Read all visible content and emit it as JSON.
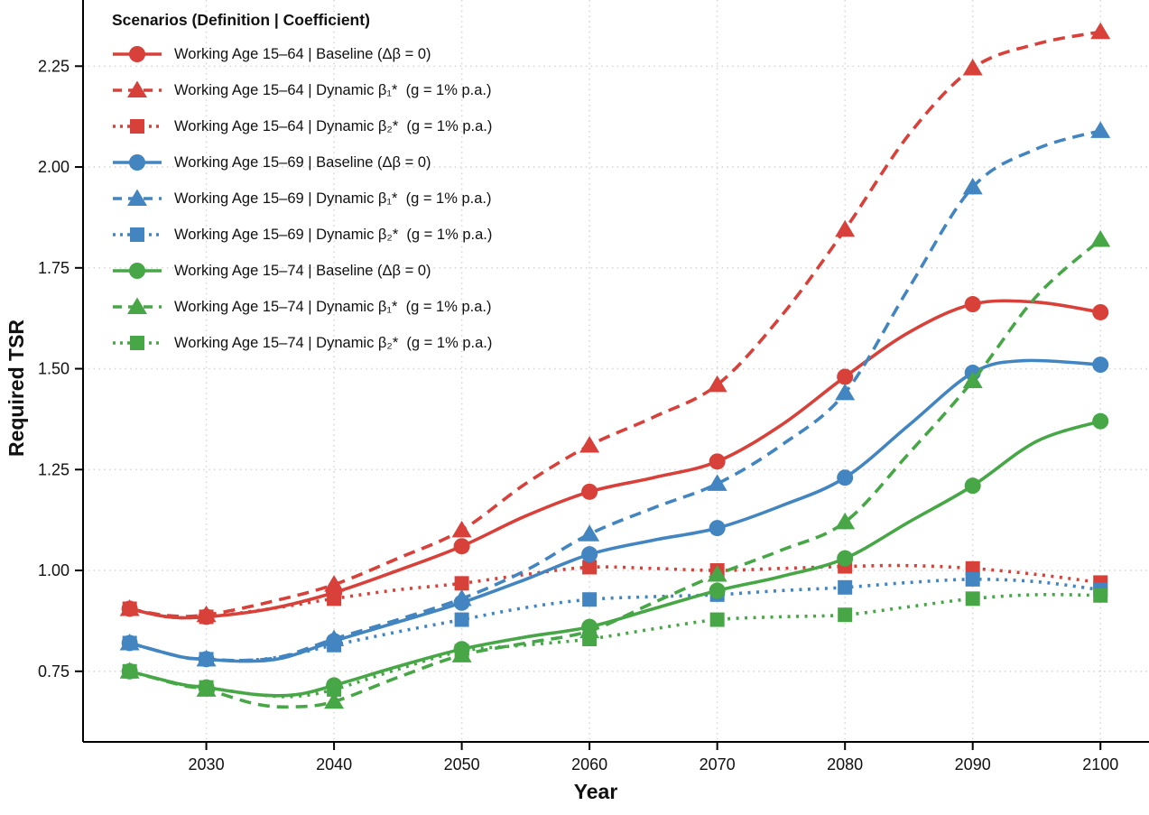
{
  "chart_data": {
    "type": "line",
    "xlabel": "Year",
    "ylabel": "Required TSR",
    "x_ticks": [
      2030,
      2040,
      2050,
      2060,
      2070,
      2080,
      2090,
      2100
    ],
    "y_ticks": [
      0.75,
      1.0,
      1.25,
      1.5,
      1.75,
      2.0,
      2.25
    ],
    "y_tick_labels": [
      "0.75",
      "1.00",
      "1.25",
      "1.50",
      "1.75",
      "2.00",
      "2.25"
    ],
    "xlim": [
      2020.35,
      2103.8
    ],
    "ylim": [
      0.575,
      2.414
    ],
    "grid": "dotted-both-axes",
    "grid_color": "#d9d9d9",
    "axis_color": "#000000",
    "marker_years": [
      2024,
      2030,
      2040,
      2050,
      2060,
      2070,
      2080,
      2090,
      2100
    ],
    "legend": {
      "title": "Scenarios (Definition | Coefficient)",
      "position": "top-left"
    },
    "series": [
      {
        "label": "Working Age 15–64 | Baseline (Δβ = 0)",
        "color": "#d8403a",
        "line_style": "solid",
        "marker": "circle",
        "x": [
          2024,
          2027,
          2030,
          2035,
          2040,
          2045,
          2050,
          2055,
          2060,
          2065,
          2070,
          2075,
          2080,
          2085,
          2090,
          2095,
          2100
        ],
        "y": [
          0.905,
          0.885,
          0.885,
          0.905,
          0.945,
          1.0,
          1.06,
          1.135,
          1.195,
          1.23,
          1.27,
          1.36,
          1.48,
          1.59,
          1.66,
          1.665,
          1.64
        ]
      },
      {
        "label": "Working Age 15–64 | Dynamic β₁*  (g = 1% p.a.)",
        "color": "#d8403a",
        "line_style": "dashed",
        "marker": "triangle",
        "x": [
          2024,
          2027,
          2030,
          2035,
          2040,
          2045,
          2050,
          2055,
          2060,
          2065,
          2070,
          2075,
          2080,
          2085,
          2090,
          2095,
          2100
        ],
        "y": [
          0.905,
          0.888,
          0.89,
          0.922,
          0.965,
          1.03,
          1.1,
          1.215,
          1.31,
          1.38,
          1.46,
          1.63,
          1.845,
          2.08,
          2.245,
          2.305,
          2.335
        ]
      },
      {
        "label": "Working Age 15–64 | Dynamic β₂*  (g = 1% p.a.)",
        "color": "#d8403a",
        "line_style": "dotted",
        "marker": "square",
        "x": [
          2024,
          2027,
          2030,
          2035,
          2040,
          2045,
          2050,
          2055,
          2060,
          2065,
          2070,
          2075,
          2080,
          2085,
          2090,
          2095,
          2100
        ],
        "y": [
          0.905,
          0.885,
          0.885,
          0.905,
          0.93,
          0.952,
          0.968,
          0.99,
          1.008,
          1.005,
          1.0,
          1.005,
          1.01,
          1.012,
          1.005,
          0.99,
          0.97
        ]
      },
      {
        "label": "Working Age 15–69 | Baseline (Δβ = 0)",
        "color": "#4285c0",
        "line_style": "solid",
        "marker": "circle",
        "x": [
          2024,
          2028,
          2030,
          2033,
          2036,
          2040,
          2045,
          2050,
          2055,
          2060,
          2065,
          2070,
          2075,
          2080,
          2085,
          2090,
          2094,
          2100
        ],
        "y": [
          0.82,
          0.786,
          0.78,
          0.775,
          0.783,
          0.825,
          0.872,
          0.92,
          0.978,
          1.04,
          1.075,
          1.105,
          1.16,
          1.23,
          1.36,
          1.49,
          1.52,
          1.51
        ]
      },
      {
        "label": "Working Age 15–69 | Dynamic β₁*  (g = 1% p.a.)",
        "color": "#4285c0",
        "line_style": "dashed",
        "marker": "triangle",
        "x": [
          2024,
          2028,
          2030,
          2033,
          2036,
          2040,
          2045,
          2050,
          2055,
          2060,
          2065,
          2070,
          2075,
          2080,
          2085,
          2090,
          2095,
          2100
        ],
        "y": [
          0.82,
          0.786,
          0.78,
          0.777,
          0.787,
          0.83,
          0.878,
          0.93,
          1.0,
          1.09,
          1.155,
          1.215,
          1.31,
          1.44,
          1.7,
          1.95,
          2.045,
          2.09
        ]
      },
      {
        "label": "Working Age 15–69 | Dynamic β₂*  (g = 1% p.a.)",
        "color": "#4285c0",
        "line_style": "dotted",
        "marker": "square",
        "x": [
          2024,
          2028,
          2030,
          2033,
          2036,
          2040,
          2045,
          2050,
          2055,
          2060,
          2065,
          2070,
          2075,
          2080,
          2085,
          2090,
          2095,
          2100
        ],
        "y": [
          0.82,
          0.786,
          0.78,
          0.777,
          0.787,
          0.815,
          0.848,
          0.878,
          0.908,
          0.928,
          0.935,
          0.94,
          0.95,
          0.958,
          0.97,
          0.978,
          0.972,
          0.952
        ]
      },
      {
        "label": "Working Age 15–74 | Baseline (Δβ = 0)",
        "color": "#47a747",
        "line_style": "solid",
        "marker": "circle",
        "x": [
          2024,
          2028,
          2030,
          2034,
          2037,
          2040,
          2045,
          2050,
          2055,
          2060,
          2065,
          2070,
          2075,
          2080,
          2085,
          2090,
          2095,
          2100
        ],
        "y": [
          0.75,
          0.718,
          0.71,
          0.692,
          0.692,
          0.715,
          0.762,
          0.805,
          0.835,
          0.86,
          0.905,
          0.95,
          0.985,
          1.03,
          1.12,
          1.21,
          1.32,
          1.37
        ]
      },
      {
        "label": "Working Age 15–74 | Dynamic β₁*  (g = 1% p.a.)",
        "color": "#47a747",
        "line_style": "dashed",
        "marker": "triangle",
        "x": [
          2024,
          2028,
          2030,
          2034,
          2037,
          2040,
          2045,
          2050,
          2055,
          2060,
          2065,
          2070,
          2075,
          2080,
          2085,
          2090,
          2095,
          2100
        ],
        "y": [
          0.75,
          0.716,
          0.705,
          0.668,
          0.662,
          0.675,
          0.735,
          0.79,
          0.82,
          0.85,
          0.92,
          0.99,
          1.05,
          1.12,
          1.29,
          1.47,
          1.68,
          1.82
        ]
      },
      {
        "label": "Working Age 15–74 | Dynamic β₂*  (g = 1% p.a.)",
        "color": "#47a747",
        "line_style": "dotted",
        "marker": "square",
        "x": [
          2024,
          2028,
          2030,
          2034,
          2037,
          2040,
          2045,
          2050,
          2055,
          2060,
          2065,
          2070,
          2075,
          2080,
          2085,
          2090,
          2095,
          2100
        ],
        "y": [
          0.75,
          0.718,
          0.71,
          0.692,
          0.688,
          0.705,
          0.755,
          0.8,
          0.815,
          0.83,
          0.855,
          0.878,
          0.885,
          0.89,
          0.91,
          0.93,
          0.94,
          0.938
        ]
      }
    ]
  }
}
